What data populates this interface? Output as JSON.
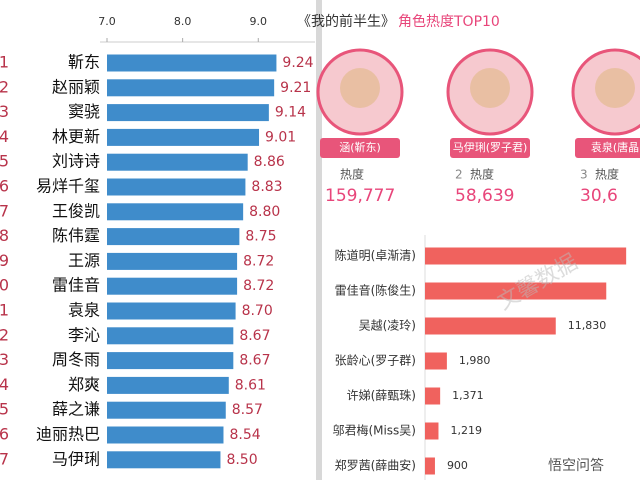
{
  "chart_data": [
    {
      "type": "bar",
      "orientation": "horizontal",
      "categories": [
        "靳东",
        "赵丽颖",
        "窦骁",
        "林更新",
        "刘诗诗",
        "易烊千玺",
        "王俊凯",
        "陈伟霆",
        "王源",
        "雷佳音",
        "袁泉",
        "李沁",
        "周冬雨",
        "郑爽",
        "薛之谦",
        "迪丽热巴",
        "马伊琍"
      ],
      "row_labels": [
        "1",
        "2",
        "3",
        "4",
        "5",
        "6",
        "7",
        "8",
        "9",
        "0",
        "1",
        "2",
        "3",
        "4",
        "5",
        "6",
        "7"
      ],
      "values": [
        9.24,
        9.21,
        9.14,
        9.01,
        8.86,
        8.83,
        8.8,
        8.75,
        8.72,
        8.72,
        8.7,
        8.67,
        8.67,
        8.61,
        8.57,
        8.54,
        8.5
      ],
      "value_labels": [
        "9.24",
        "9.21",
        "9.14",
        "9.01",
        "8.86",
        "8.83",
        "8.80",
        "8.75",
        "8.72",
        "8.72",
        "8.70",
        "8.67",
        "8.67",
        "8.61",
        "8.57",
        "8.54",
        "8.50"
      ],
      "color": "#3f8ccb",
      "xlim": [
        7.0,
        9.75
      ],
      "xticks": [
        {
          "value": 7,
          "label": "7.0"
        },
        {
          "value": 8,
          "label": "8.0"
        },
        {
          "value": 9,
          "label": "9.0"
        }
      ]
    },
    {
      "type": "bar",
      "orientation": "horizontal",
      "title": "《我的前半生》",
      "subtitle": "角色热度TOP10",
      "categories": [
        "陈道明(卓渐清)",
        "雷佳音(陈俊生)",
        "吴越(凌玲)",
        "张龄心(罗子群)",
        "许娣(薛甄珠)",
        "邬君梅(Miss吴)",
        "郑罗茜(薛曲安)"
      ],
      "values": [
        18200,
        16400,
        11830,
        1980,
        1371,
        1219,
        900
      ],
      "value_labels": [
        null,
        null,
        "11,830",
        "1,980",
        "1,371",
        "1,219",
        "900"
      ],
      "color": "#f0625e",
      "xlim": [
        0,
        19000
      ]
    }
  ],
  "cards": [
    {
      "caption": "涵(靳东)",
      "heat_label": "热度",
      "value": "159,777"
    },
    {
      "caption": "马伊琍(罗子君)",
      "heat_label": "热度",
      "rank": "2",
      "value": "58,639"
    },
    {
      "caption": "袁泉(唐晶",
      "heat_label": "热度",
      "rank": "3",
      "value": "30,6"
    }
  ],
  "watermarks": [
    "文馨数据",
    "悟空问答"
  ]
}
